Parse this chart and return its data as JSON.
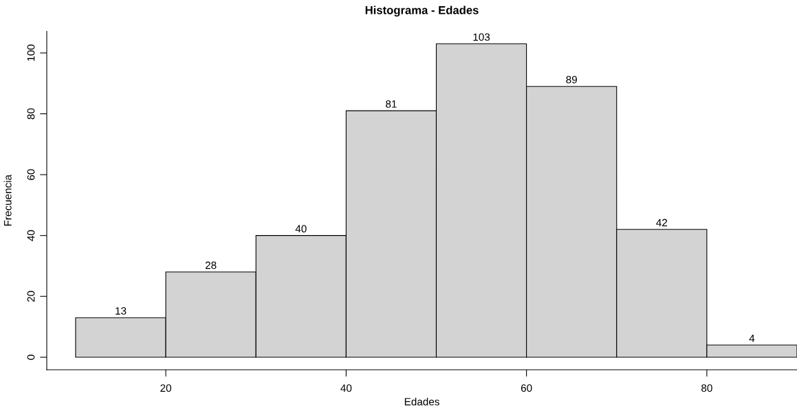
{
  "chart_data": {
    "type": "histogram",
    "title": "Histograma - Edades",
    "xlabel": "Edades",
    "ylabel": "Frecuencia",
    "bins": [
      10,
      20,
      30,
      40,
      50,
      60,
      70,
      80,
      90
    ],
    "values": [
      13,
      28,
      40,
      81,
      103,
      89,
      42,
      4
    ],
    "color": "#d3d3d3",
    "xlim": [
      6.8,
      90
    ],
    "xticks": [
      20,
      40,
      60,
      80
    ],
    "ylim": [
      -4.12,
      107.12
    ],
    "yticks": [
      0,
      20,
      40,
      60,
      80,
      100
    ],
    "data_labels": true,
    "grid": false
  }
}
